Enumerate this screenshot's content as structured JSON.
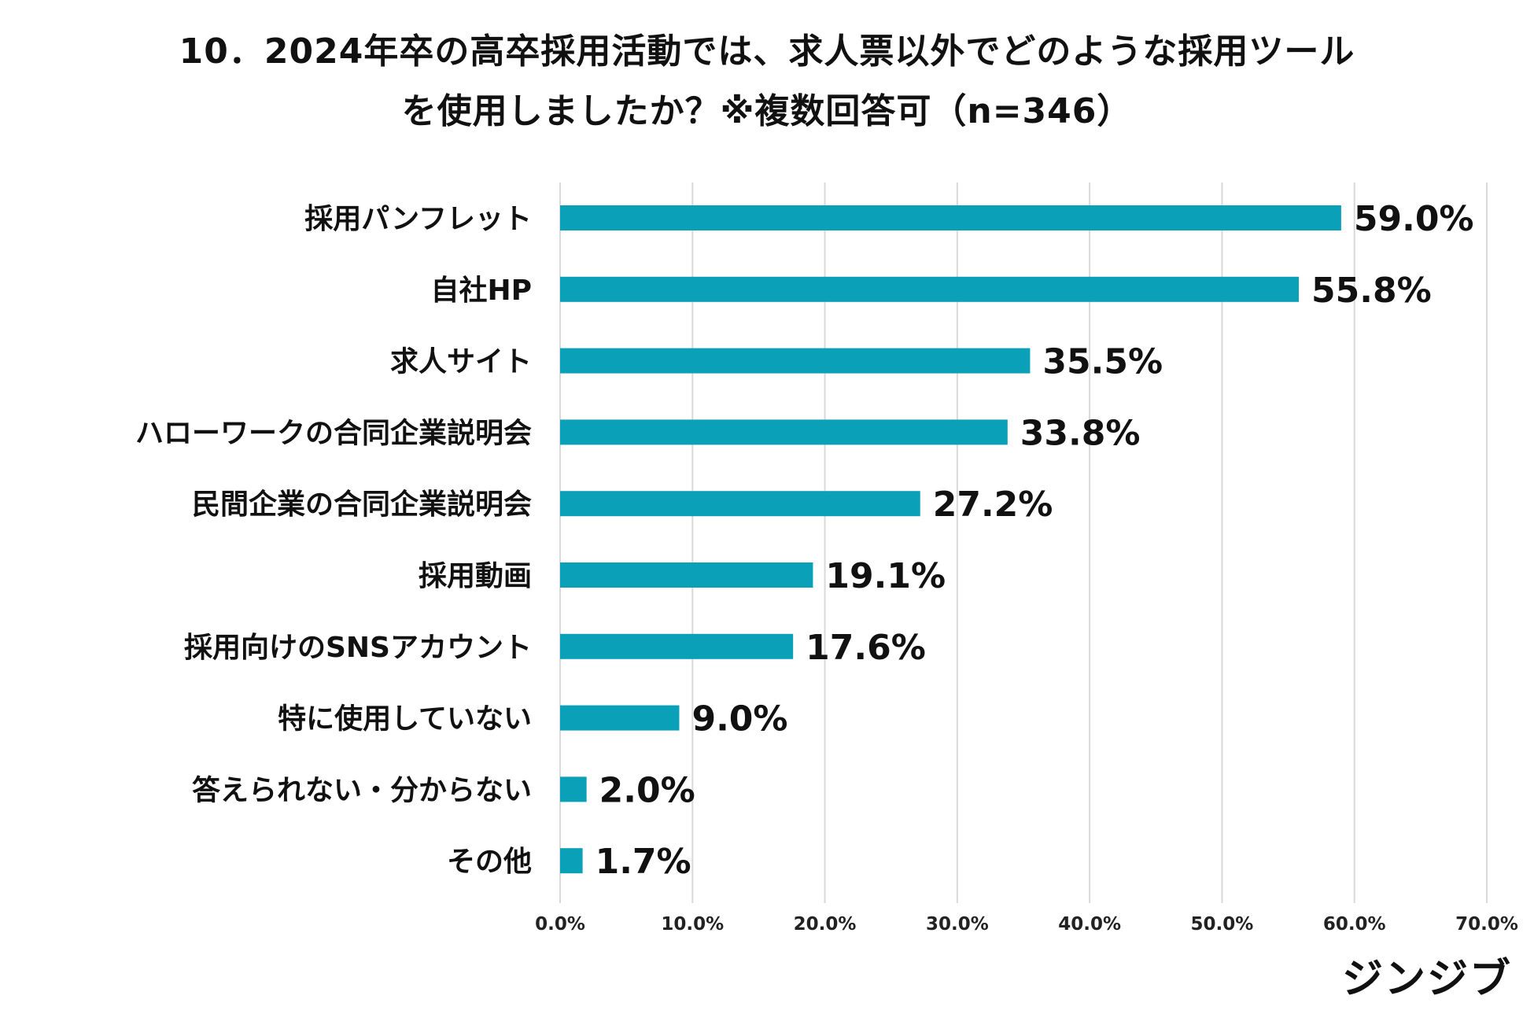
{
  "title": {
    "line1": "10．2024年卒の高卒採用活動では、求人票以外でどのような採用ツール",
    "line2": "を使用しましたか？※複数回答可（n=346）"
  },
  "logo_text": "ジンジブ",
  "colors": {
    "bar": "#0aa0b8",
    "grid": "#d9d9d9",
    "text": "#111111"
  },
  "chart_data": {
    "type": "bar",
    "orientation": "horizontal",
    "title": "10．2024年卒の高卒採用活動では、求人票以外でどのような採用ツールを使用しましたか？※複数回答可（n=346）",
    "categories": [
      "採用パンフレット",
      "自社HP",
      "求人サイト",
      "ハローワークの合同企業説明会",
      "民間企業の合同企業説明会",
      "採用動画",
      "採用向けのSNSアカウント",
      "特に使用していない",
      "答えられない・分からない",
      "その他"
    ],
    "values": [
      59.0,
      55.8,
      35.5,
      33.8,
      27.2,
      19.1,
      17.6,
      9.0,
      2.0,
      1.7
    ],
    "value_labels": [
      "59.0%",
      "55.8%",
      "35.5%",
      "33.8%",
      "27.2%",
      "19.1%",
      "17.6%",
      "9.0%",
      "2.0%",
      "1.7%"
    ],
    "xlim": [
      0,
      70
    ],
    "xticks": [
      0,
      10,
      20,
      30,
      40,
      50,
      60,
      70
    ],
    "xtick_labels": [
      "0.0%",
      "10.0%",
      "20.0%",
      "30.0%",
      "40.0%",
      "50.0%",
      "60.0%",
      "70.0%"
    ],
    "xlabel": "",
    "ylabel": "",
    "grid": true
  }
}
